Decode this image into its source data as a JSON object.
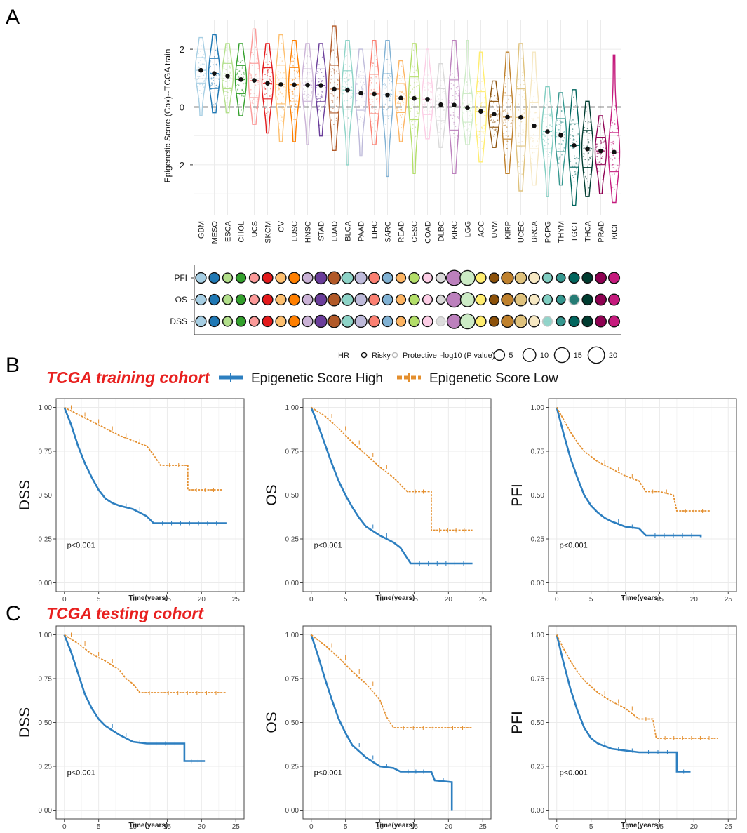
{
  "panels": {
    "A": "A",
    "B": "B",
    "C": "C"
  },
  "colors": {
    "high": "#2d7fc0",
    "low": "#e48f2e",
    "grid": "#ebebeb",
    "title_red": "#e8201f"
  },
  "chart_data": [
    {
      "id": "violin",
      "type": "violin",
      "ylabel": "Epigenetic Score (Cox)--TCGA train",
      "ylim": [
        -3.7,
        2.9
      ],
      "yticks": [
        -2,
        0,
        2
      ],
      "reference_line": 0,
      "categories": [
        "GBM",
        "MESO",
        "ESCA",
        "CHOL",
        "UCS",
        "SKCM",
        "OV",
        "LUSC",
        "HNSC",
        "STAD",
        "LUAD",
        "BLCA",
        "PAAD",
        "LIHC",
        "SARC",
        "READ",
        "CESC",
        "COAD",
        "DLBC",
        "KIRC",
        "LGG",
        "ACC",
        "UVM",
        "KIRP",
        "UCEC",
        "BRCA",
        "PCPG",
        "THYM",
        "TGCT",
        "THCA",
        "PRAD",
        "KICH"
      ],
      "colors": [
        "#a6cee3",
        "#1f78b4",
        "#b2df8a",
        "#33a02c",
        "#fb9a99",
        "#e31a1c",
        "#fdbf6f",
        "#ff7f00",
        "#cab2d6",
        "#6a3d9a",
        "#b15928",
        "#8dd3c7",
        "#bebada",
        "#fb8072",
        "#80b1d3",
        "#fdb462",
        "#b3de69",
        "#fccde5",
        "#d9d9d9",
        "#bc80bd",
        "#ccebc5",
        "#ffed6f",
        "#8c510a",
        "#bf812d",
        "#dfc27d",
        "#f6e8c3",
        "#80cdc1",
        "#35978f",
        "#01665e",
        "#003c30",
        "#8e0152",
        "#c51b7d"
      ],
      "means": [
        1.27,
        1.16,
        1.07,
        0.95,
        0.92,
        0.82,
        0.78,
        0.77,
        0.76,
        0.75,
        0.62,
        0.59,
        0.48,
        0.45,
        0.42,
        0.31,
        0.3,
        0.27,
        0.08,
        0.07,
        -0.03,
        -0.15,
        -0.25,
        -0.35,
        -0.36,
        -0.65,
        -0.85,
        -0.97,
        -1.33,
        -1.45,
        -1.52,
        -1.56
      ],
      "mins": [
        -0.3,
        -0.2,
        -0.2,
        -0.3,
        -0.6,
        -0.9,
        -1.2,
        -1.2,
        -1.3,
        -1.0,
        -1.5,
        -2.0,
        -1.7,
        -1.3,
        -2.4,
        -1.2,
        -2.3,
        -1.1,
        -1.4,
        -2.3,
        -1.3,
        -1.9,
        -1.4,
        -2.3,
        -2.9,
        -2.7,
        -3.1,
        -2.7,
        -3.4,
        -3.1,
        -3.0,
        -3.3
      ],
      "maxs": [
        2.4,
        2.5,
        2.2,
        2.2,
        2.7,
        2.2,
        2.5,
        2.3,
        2.2,
        2.2,
        2.8,
        2.3,
        2.0,
        2.3,
        2.3,
        1.6,
        2.2,
        2.0,
        1.5,
        2.3,
        2.3,
        1.9,
        0.9,
        1.9,
        2.2,
        1.9,
        0.7,
        0.5,
        0.6,
        0.2,
        -0.3,
        1.8
      ]
    },
    {
      "id": "dots",
      "type": "dot-matrix",
      "rows": [
        "PFI",
        "OS",
        "DSS"
      ],
      "categories": [
        "GBM",
        "MESO",
        "ESCA",
        "CHOL",
        "UCS",
        "SKCM",
        "OV",
        "LUSC",
        "HNSC",
        "STAD",
        "LUAD",
        "BLCA",
        "PAAD",
        "LIHC",
        "SARC",
        "READ",
        "CESC",
        "COAD",
        "DLBC",
        "KIRC",
        "LGG",
        "ACC",
        "UVM",
        "KIRP",
        "UCEC",
        "BRCA",
        "PCPG",
        "THYM",
        "TGCT",
        "THCA",
        "PRAD",
        "KICH"
      ],
      "neglog10p": {
        "PFI": [
          5,
          5,
          4,
          4,
          4,
          5,
          5,
          6,
          5,
          8,
          9,
          7,
          8,
          6,
          5,
          4,
          5,
          4,
          4,
          16,
          15,
          5,
          4,
          8,
          7,
          6,
          4,
          3,
          5,
          5,
          6,
          6
        ],
        "OS": [
          5,
          5,
          4,
          4,
          4,
          5,
          5,
          6,
          5,
          8,
          9,
          7,
          8,
          6,
          5,
          4,
          5,
          4,
          3,
          15,
          13,
          5,
          4,
          8,
          9,
          5,
          4,
          3,
          5,
          5,
          6,
          6
        ],
        "DSS": [
          5,
          5,
          4,
          4,
          4,
          5,
          5,
          6,
          5,
          8,
          9,
          7,
          8,
          6,
          5,
          4,
          5,
          5,
          3,
          13,
          15,
          5,
          4,
          8,
          9,
          6,
          4,
          3,
          5,
          5,
          6,
          6
        ]
      },
      "hr_direction": {
        "PFI": [
          "R",
          "R",
          "R",
          "R",
          "R",
          "R",
          "R",
          "R",
          "R",
          "R",
          "R",
          "R",
          "R",
          "R",
          "R",
          "R",
          "R",
          "R",
          "R",
          "R",
          "R",
          "R",
          "R",
          "R",
          "R",
          "R",
          "R",
          "R",
          "R",
          "R",
          "R",
          "R"
        ],
        "OS": [
          "R",
          "R",
          "R",
          "R",
          "R",
          "R",
          "R",
          "R",
          "R",
          "R",
          "R",
          "R",
          "R",
          "R",
          "R",
          "R",
          "R",
          "R",
          "R",
          "R",
          "R",
          "R",
          "R",
          "R",
          "R",
          "R",
          "R",
          "R",
          "P",
          "R",
          "R",
          "R"
        ],
        "DSS": [
          "R",
          "R",
          "R",
          "R",
          "R",
          "R",
          "R",
          "R",
          "R",
          "R",
          "R",
          "R",
          "R",
          "R",
          "R",
          "R",
          "R",
          "R",
          "P",
          "R",
          "R",
          "R",
          "R",
          "R",
          "R",
          "R",
          "P",
          "R",
          "R",
          "R",
          "R",
          "R"
        ]
      },
      "legend": {
        "hr_title": "HR",
        "risky": "Risky",
        "protective": "Protective",
        "p_title": "-log10 (P value)",
        "p_levels": [
          "5",
          "10",
          "15",
          "20"
        ]
      }
    },
    {
      "id": "km-train-dss",
      "type": "km",
      "ylabel": "DSS",
      "xlabel": "Time(years)",
      "pvalue": "p<0.001",
      "xticks": [
        "0",
        "5",
        "10",
        "15",
        "20",
        "25"
      ],
      "yticks": [
        "0.00",
        "0.25",
        "0.50",
        "0.75",
        "1.00"
      ],
      "high": [
        [
          0,
          1
        ],
        [
          1,
          0.9
        ],
        [
          2,
          0.78
        ],
        [
          3,
          0.68
        ],
        [
          4,
          0.6
        ],
        [
          5,
          0.53
        ],
        [
          6,
          0.48
        ],
        [
          7,
          0.455
        ],
        [
          8,
          0.44
        ],
        [
          10,
          0.42
        ],
        [
          12,
          0.38
        ],
        [
          13,
          0.34
        ],
        [
          23.5,
          0.335
        ]
      ],
      "low": [
        [
          0,
          1
        ],
        [
          2,
          0.96
        ],
        [
          4,
          0.92
        ],
        [
          6,
          0.88
        ],
        [
          8,
          0.84
        ],
        [
          10,
          0.81
        ],
        [
          12,
          0.78
        ],
        [
          13,
          0.73
        ],
        [
          14,
          0.67
        ],
        [
          18,
          0.67
        ],
        [
          18,
          0.53
        ],
        [
          23,
          0.535
        ]
      ]
    },
    {
      "id": "km-train-os",
      "type": "km",
      "ylabel": "OS",
      "xlabel": "Time(years)",
      "pvalue": "p<0.001",
      "xticks": [
        "0",
        "5",
        "10",
        "15",
        "20",
        "25"
      ],
      "yticks": [
        "0.00",
        "0.25",
        "0.50",
        "0.75",
        "1.00"
      ],
      "high": [
        [
          0,
          1
        ],
        [
          1,
          0.9
        ],
        [
          2,
          0.79
        ],
        [
          3,
          0.68
        ],
        [
          4,
          0.58
        ],
        [
          5,
          0.5
        ],
        [
          6,
          0.43
        ],
        [
          7,
          0.37
        ],
        [
          8,
          0.32
        ],
        [
          10,
          0.27
        ],
        [
          12,
          0.23
        ],
        [
          13,
          0.2
        ],
        [
          14,
          0.14
        ],
        [
          14.5,
          0.11
        ],
        [
          23.5,
          0.11
        ]
      ],
      "low": [
        [
          0,
          1
        ],
        [
          2,
          0.95
        ],
        [
          4,
          0.88
        ],
        [
          6,
          0.8
        ],
        [
          8,
          0.73
        ],
        [
          10,
          0.66
        ],
        [
          12,
          0.6
        ],
        [
          13,
          0.56
        ],
        [
          14,
          0.52
        ],
        [
          17.5,
          0.52
        ],
        [
          17.5,
          0.3
        ],
        [
          23.5,
          0.3
        ]
      ]
    },
    {
      "id": "km-train-pfi",
      "type": "km",
      "ylabel": "PFI",
      "xlabel": "Time(years)",
      "pvalue": "p<0.001",
      "xticks": [
        "0",
        "5",
        "10",
        "15",
        "20",
        "25"
      ],
      "yticks": [
        "0.00",
        "0.25",
        "0.50",
        "0.75",
        "1.00"
      ],
      "high": [
        [
          0,
          1
        ],
        [
          1,
          0.85
        ],
        [
          2,
          0.71
        ],
        [
          3,
          0.6
        ],
        [
          4,
          0.5
        ],
        [
          5,
          0.44
        ],
        [
          6,
          0.4
        ],
        [
          7,
          0.37
        ],
        [
          8,
          0.35
        ],
        [
          10,
          0.32
        ],
        [
          12,
          0.31
        ],
        [
          13,
          0.27
        ],
        [
          21,
          0.26
        ]
      ],
      "low": [
        [
          0,
          1
        ],
        [
          1,
          0.93
        ],
        [
          2,
          0.86
        ],
        [
          3,
          0.8
        ],
        [
          4,
          0.75
        ],
        [
          6,
          0.69
        ],
        [
          8,
          0.65
        ],
        [
          10,
          0.61
        ],
        [
          12,
          0.58
        ],
        [
          13,
          0.52
        ],
        [
          15,
          0.52
        ],
        [
          17,
          0.5
        ],
        [
          17.5,
          0.41
        ],
        [
          22.5,
          0.41
        ]
      ]
    },
    {
      "id": "km-test-dss",
      "type": "km",
      "ylabel": "DSS",
      "xlabel": "Time(years)",
      "pvalue": "p<0.001",
      "xticks": [
        "0",
        "5",
        "10",
        "15",
        "20",
        "25"
      ],
      "yticks": [
        "0.00",
        "0.25",
        "0.50",
        "0.75",
        "1.00"
      ],
      "high": [
        [
          0,
          1
        ],
        [
          1,
          0.9
        ],
        [
          2,
          0.78
        ],
        [
          3,
          0.66
        ],
        [
          4,
          0.58
        ],
        [
          5,
          0.52
        ],
        [
          6,
          0.48
        ],
        [
          8,
          0.43
        ],
        [
          10,
          0.39
        ],
        [
          12,
          0.38
        ],
        [
          17.5,
          0.38
        ],
        [
          17.5,
          0.28
        ],
        [
          20.5,
          0.28
        ]
      ],
      "low": [
        [
          0,
          1
        ],
        [
          2,
          0.95
        ],
        [
          4,
          0.89
        ],
        [
          6,
          0.85
        ],
        [
          8,
          0.8
        ],
        [
          9,
          0.75
        ],
        [
          10,
          0.72
        ],
        [
          11,
          0.67
        ],
        [
          23.5,
          0.67
        ]
      ]
    },
    {
      "id": "km-test-os",
      "type": "km",
      "ylabel": "OS",
      "xlabel": "Time(years)",
      "pvalue": "p<0.001",
      "xticks": [
        "0",
        "5",
        "10",
        "15",
        "20",
        "25"
      ],
      "yticks": [
        "0.00",
        "0.25",
        "0.50",
        "0.75",
        "1.00"
      ],
      "high": [
        [
          0,
          1
        ],
        [
          1,
          0.88
        ],
        [
          2,
          0.75
        ],
        [
          3,
          0.63
        ],
        [
          4,
          0.52
        ],
        [
          5,
          0.44
        ],
        [
          6,
          0.37
        ],
        [
          8,
          0.3
        ],
        [
          10,
          0.25
        ],
        [
          12,
          0.24
        ],
        [
          13,
          0.22
        ],
        [
          17.5,
          0.22
        ],
        [
          18,
          0.17
        ],
        [
          20.5,
          0.16
        ],
        [
          20.5,
          0
        ]
      ],
      "low": [
        [
          0,
          1
        ],
        [
          2,
          0.94
        ],
        [
          4,
          0.87
        ],
        [
          6,
          0.79
        ],
        [
          8,
          0.72
        ],
        [
          10,
          0.63
        ],
        [
          11,
          0.53
        ],
        [
          12,
          0.47
        ],
        [
          23.5,
          0.47
        ]
      ]
    },
    {
      "id": "km-test-pfi",
      "type": "km",
      "ylabel": "PFI",
      "xlabel": "Time(years)",
      "pvalue": "p<0.001",
      "xticks": [
        "0",
        "5",
        "10",
        "15",
        "20",
        "25"
      ],
      "yticks": [
        "0.00",
        "0.25",
        "0.50",
        "0.75",
        "1.00"
      ],
      "high": [
        [
          0,
          1
        ],
        [
          1,
          0.84
        ],
        [
          2,
          0.69
        ],
        [
          3,
          0.57
        ],
        [
          4,
          0.47
        ],
        [
          5,
          0.41
        ],
        [
          6,
          0.38
        ],
        [
          8,
          0.35
        ],
        [
          10,
          0.34
        ],
        [
          12,
          0.33
        ],
        [
          17.5,
          0.33
        ],
        [
          17.5,
          0.22
        ],
        [
          19.5,
          0.22
        ]
      ],
      "low": [
        [
          0,
          1
        ],
        [
          1,
          0.92
        ],
        [
          2,
          0.85
        ],
        [
          3,
          0.79
        ],
        [
          4,
          0.74
        ],
        [
          6,
          0.67
        ],
        [
          8,
          0.62
        ],
        [
          10,
          0.58
        ],
        [
          12,
          0.52
        ],
        [
          14,
          0.52
        ],
        [
          14.5,
          0.41
        ],
        [
          23.5,
          0.41
        ]
      ]
    }
  ],
  "titles": {
    "training": "TCGA training cohort",
    "testing": "TCGA testing cohort"
  },
  "km_legend": {
    "high": "Epigenetic Score High",
    "low": "Epigenetic Score Low"
  }
}
